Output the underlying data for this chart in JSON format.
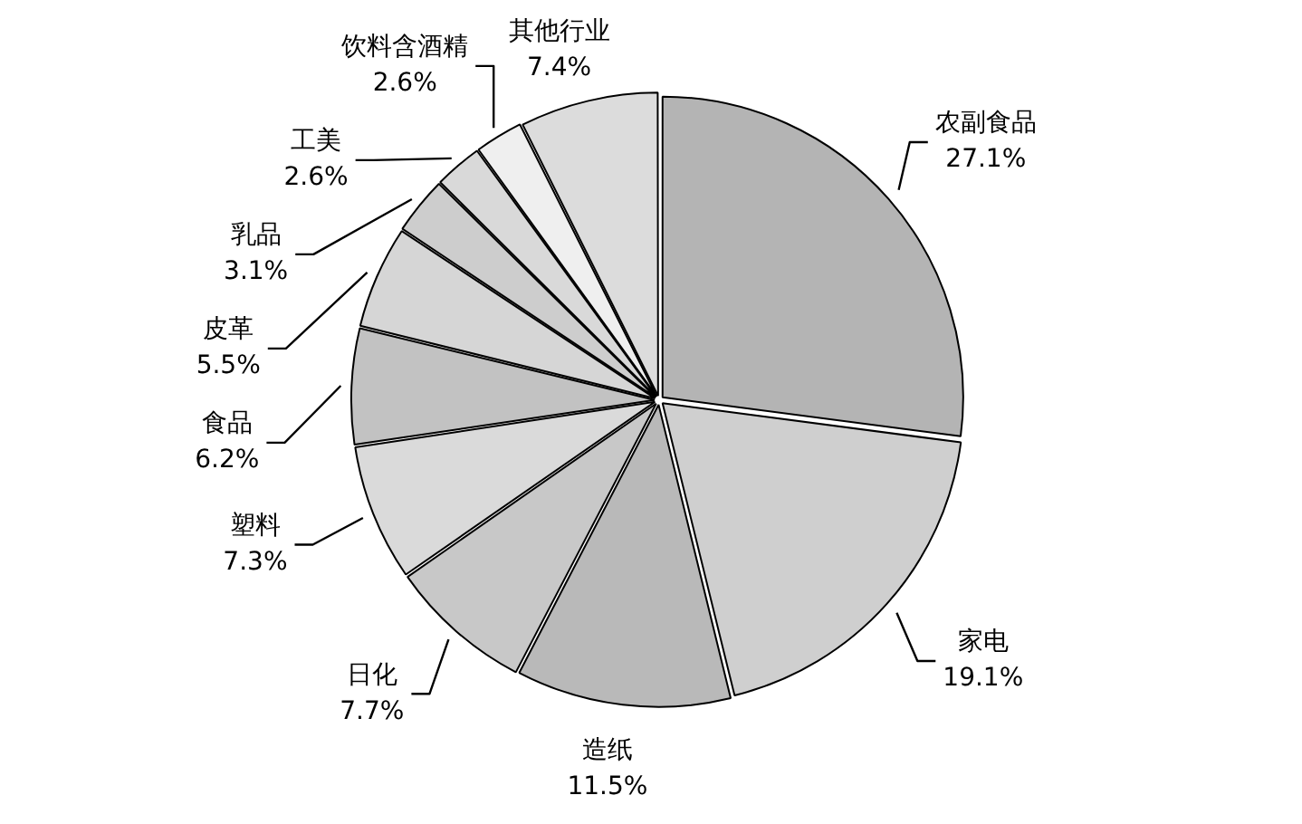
{
  "chart_data": {
    "type": "pie",
    "categories": [
      "农副食品",
      "家电",
      "造纸",
      "日化",
      "塑料",
      "食品",
      "皮革",
      "乳品",
      "工美",
      "饮料含酒精",
      "其他行业"
    ],
    "values": [
      27.1,
      19.1,
      11.5,
      7.7,
      7.3,
      6.2,
      5.5,
      3.1,
      2.6,
      2.6,
      7.4
    ],
    "colors": [
      "#b4b4b4",
      "#cfcfcf",
      "#b9b9b9",
      "#c8c8c8",
      "#dadada",
      "#c2c2c2",
      "#d6d6d6",
      "#cdcdcd",
      "#d9d9d9",
      "#efefef",
      "#dcdcdc"
    ],
    "value_labels": [
      "27.1%",
      "19.1%",
      "11.5%",
      "7.7%",
      "7.3%",
      "6.2%",
      "5.5%",
      "3.1%",
      "2.6%",
      "2.6%",
      "7.4%"
    ],
    "legend": false
  }
}
